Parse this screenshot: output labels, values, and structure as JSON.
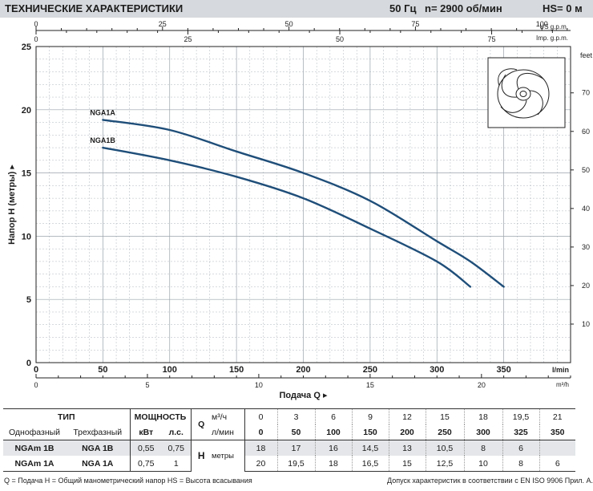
{
  "header": {
    "title": "ТЕХНИЧЕСКИЕ ХАРАКТЕРИСТИКИ",
    "freq": "50 Гц",
    "speed": "n= 2900 об/мин",
    "suction": "HS= 0 м"
  },
  "chart_data": {
    "type": "line",
    "xlabel": "Подача Q",
    "ylabel": "Напор H (метры)",
    "ylabel_right": "feet",
    "x_unit": "l/min",
    "x_unit_m3": "m³/h",
    "x_unit_us": "US g.p.m.",
    "x_unit_imp": "Imp. g.p.m.",
    "xlim": [
      0,
      400
    ],
    "ylim": [
      0,
      25
    ],
    "x_ticks": [
      0,
      50,
      100,
      150,
      200,
      250,
      300,
      350
    ],
    "y_ticks": [
      0,
      5,
      10,
      15,
      20,
      25
    ],
    "feet_ticks": [
      10,
      20,
      30,
      40,
      50,
      60,
      70
    ],
    "m3h_ticks": [
      0,
      5,
      10,
      15,
      20
    ],
    "us_gpm_ticks": [
      0,
      25,
      50,
      75,
      100
    ],
    "imp_gpm_ticks": [
      0,
      25,
      50,
      75
    ],
    "grid": true,
    "series": [
      {
        "name": "NGA1A",
        "x": [
          50,
          100,
          150,
          200,
          250,
          300,
          325,
          350
        ],
        "y": [
          19.2,
          18.4,
          16.7,
          15,
          12.8,
          9.6,
          8,
          6
        ]
      },
      {
        "name": "NGA1B",
        "x": [
          50,
          100,
          150,
          200,
          250,
          300,
          325
        ],
        "y": [
          17,
          16,
          14.7,
          13,
          10.6,
          8,
          6
        ]
      }
    ],
    "colors": {
      "curve": "#1f4e79",
      "grid": "#9aa3ab"
    }
  },
  "table": {
    "col_type": "ТИП",
    "col_power": "МОЩНОСТЬ",
    "single_phase": "Однофазный",
    "three_phase": "Трехфазный",
    "kw": "кВт",
    "hp": "л.с.",
    "q_symbol": "Q",
    "q_unit_m3": "м³/ч",
    "q_unit_l": "л/мин",
    "h_symbol": "H",
    "h_unit": "метры",
    "q_m3h": [
      "0",
      "3",
      "6",
      "9",
      "12",
      "15",
      "18",
      "19,5",
      "21"
    ],
    "q_lmin": [
      "0",
      "50",
      "100",
      "150",
      "200",
      "250",
      "300",
      "325",
      "350"
    ],
    "rows": [
      {
        "single": "NGAm 1B",
        "three": "NGA 1B",
        "kw": "0,55",
        "hp": "0,75",
        "h": [
          "18",
          "17",
          "16",
          "14,5",
          "13",
          "10,5",
          "8",
          "6",
          ""
        ]
      },
      {
        "single": "NGAm 1A",
        "three": "NGA 1A",
        "kw": "0,75",
        "hp": "1",
        "h": [
          "20",
          "19,5",
          "18",
          "16,5",
          "15",
          "12,5",
          "10",
          "8",
          "6"
        ]
      }
    ]
  },
  "footer": {
    "legend": "Q = Подача  H = Общий манометрический напор  HS = Высота всасывания",
    "standard": "Допуск характеристик в соответствии с EN ISO 9906 Прил. A."
  }
}
